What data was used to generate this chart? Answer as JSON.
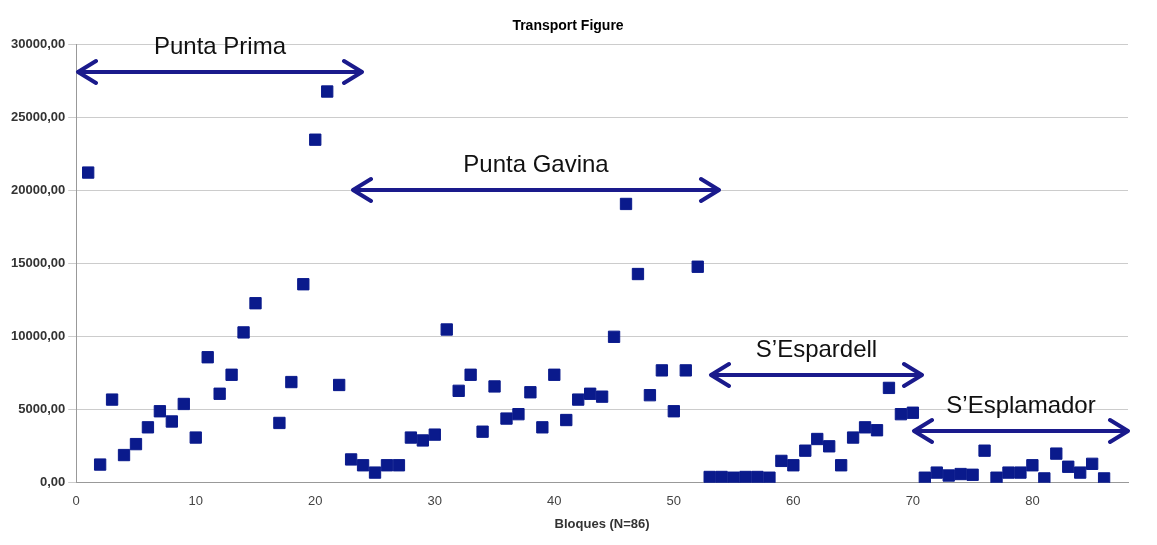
{
  "chart_data": {
    "type": "scatter",
    "title": "Transport Figure",
    "xlabel": "Bloques (N=86)",
    "x": [
      1,
      2,
      3,
      4,
      5,
      6,
      7,
      8,
      9,
      10,
      11,
      12,
      13,
      14,
      15,
      17,
      18,
      19,
      20,
      21,
      22,
      23,
      24,
      25,
      26,
      27,
      28,
      29,
      30,
      31,
      32,
      33,
      34,
      35,
      36,
      37,
      38,
      39,
      40,
      41,
      42,
      43,
      44,
      45,
      46,
      47,
      48,
      49,
      50,
      51,
      52,
      53,
      54,
      55,
      56,
      57,
      58,
      59,
      60,
      61,
      62,
      63,
      64,
      65,
      66,
      67,
      68,
      69,
      70,
      71,
      72,
      73,
      74,
      75,
      76,
      77,
      78,
      79,
      80,
      81,
      82,
      83,
      84,
      85,
      86
    ],
    "series": [
      {
        "color": "#0a1a8c",
        "values": [
          21250,
          1250,
          5700,
          1900,
          2650,
          3800,
          4900,
          4200,
          5400,
          3100,
          8600,
          6100,
          7400,
          10300,
          12300,
          4100,
          6900,
          13600,
          23500,
          26800,
          6700,
          1600,
          1200,
          700,
          1200,
          1200,
          3100,
          2900,
          3300,
          10500,
          6300,
          7400,
          3500,
          6600,
          4400,
          4700,
          6200,
          3800,
          7400,
          4300,
          5700,
          6100,
          5900,
          10000,
          19100,
          14300,
          6000,
          7700,
          4900,
          7700,
          14800,
          400,
          400,
          350,
          400,
          400,
          350,
          1500,
          1200,
          2200,
          3000,
          2500,
          1200,
          3100,
          3800,
          3600,
          6500,
          4700,
          4800,
          350,
          700,
          500,
          600,
          550,
          2200,
          350,
          700,
          700,
          1200,
          300,
          2000,
          1100,
          700,
          1300,
          300
        ]
      }
    ],
    "xlim": [
      0,
      88
    ],
    "xticks": [
      0,
      10,
      20,
      30,
      40,
      50,
      60,
      70,
      80
    ],
    "ylim": [
      0,
      30000
    ],
    "yticks": [
      {
        "value": 0,
        "label": "0,00"
      },
      {
        "value": 5000,
        "label": "5000,00"
      },
      {
        "value": 10000,
        "label": "10000,00"
      },
      {
        "value": 15000,
        "label": "15000,00"
      },
      {
        "value": 20000,
        "label": "20000,00"
      },
      {
        "value": 25000,
        "label": "25000,00"
      },
      {
        "value": 30000,
        "label": "30000,00"
      }
    ],
    "grid": "y",
    "legend": false,
    "marker": "square",
    "annotations": [
      "Punta Prima",
      "Punta Gavina",
      "S’Espardell",
      "S’Esplamador"
    ]
  }
}
